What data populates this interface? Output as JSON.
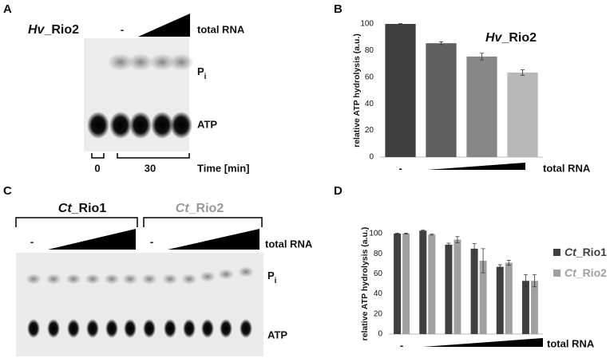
{
  "panels": {
    "A": {
      "label": "A",
      "title": "Hv_Rio2",
      "minus": "-",
      "treatment": "total RNA",
      "pi": "Pi",
      "atp": "ATP",
      "time0": "0",
      "time30": "30",
      "time_label": "Time [min]"
    },
    "C": {
      "label": "C",
      "title1": "Ct_Rio1",
      "title2": "Ct_Rio2",
      "minus1": "-",
      "minus2": "-",
      "treatment": "total RNA",
      "pi": "Pi",
      "atp": "ATP"
    },
    "B": {
      "label": "B"
    },
    "D": {
      "label": "D"
    }
  },
  "chart_data": [
    {
      "type": "bar",
      "title": "Hv_Rio2",
      "y_label": "relative ATP hydrolysis (a.u.)",
      "x_label": "total RNA",
      "categories": [
        "-",
        null,
        null,
        null
      ],
      "values": [
        100,
        85.5,
        75.5,
        63.5
      ],
      "errors": [
        0.3,
        1,
        2.5,
        2
      ],
      "colors": [
        "#3f3f3f",
        "#5f5f5f",
        "#878787",
        "#b8b8b8"
      ],
      "ylim": [
        0,
        100
      ],
      "yticks": [
        0,
        20,
        40,
        60,
        80,
        100
      ]
    },
    {
      "type": "bar",
      "y_label": "relative ATP hydrolysis (a.u.)",
      "x_label": "total RNA",
      "categories": [
        "-",
        null,
        null,
        null,
        null,
        null
      ],
      "series": [
        {
          "name": "Ct_Rio1",
          "color": "#404040",
          "values": [
            100,
            103,
            89,
            85,
            67,
            53
          ],
          "errors": [
            0.5,
            0.5,
            1.5,
            5,
            2,
            6
          ]
        },
        {
          "name": "Ct_Rio2",
          "color": "#a0a0a0",
          "values": [
            100,
            99,
            94,
            73,
            71,
            53
          ],
          "errors": [
            0.5,
            0.5,
            3,
            12,
            2.5,
            6
          ]
        }
      ],
      "ylim": [
        0,
        100
      ],
      "yticks": [
        0,
        20,
        40,
        60,
        80,
        100
      ]
    }
  ]
}
